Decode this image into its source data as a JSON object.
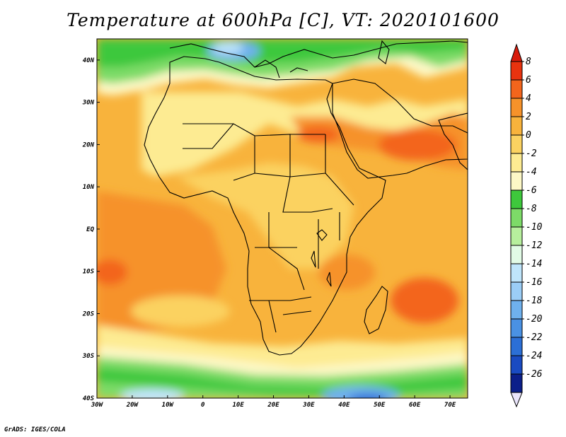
{
  "title": "Temperature at 600hPa [C], VT: 2020101600",
  "footer": "GrADS: IGES/COLA",
  "map": {
    "lon_range": [
      -30,
      75
    ],
    "lat_range": [
      -40,
      45
    ],
    "lon_ticks": [
      "30W",
      "20W",
      "10W",
      "0",
      "10E",
      "20E",
      "30E",
      "40E",
      "50E",
      "60E",
      "70E"
    ],
    "lat_ticks": [
      "40N",
      "30N",
      "20N",
      "10N",
      "EQ",
      "10S",
      "20S",
      "30S",
      "40S"
    ]
  },
  "colorbar": {
    "labels": [
      "8",
      "6",
      "4",
      "2",
      "0",
      "-2",
      "-4",
      "-6",
      "-8",
      "-10",
      "-12",
      "-14",
      "-16",
      "-18",
      "-20",
      "-22",
      "-24",
      "-26"
    ],
    "colors": [
      "#e8330f",
      "#f3651c",
      "#f6922a",
      "#f8b33c",
      "#fbd261",
      "#fdeb92",
      "#fdf8c6",
      "#3ec83c",
      "#7ddb68",
      "#b7ef9d",
      "#e2fbe6",
      "#bfe5fb",
      "#9bcdf6",
      "#6fb1ee",
      "#4a91e3",
      "#2c6fd6",
      "#1a4bc2",
      "#0c1f8a"
    ],
    "over_color": "#d81b0b",
    "under_color": "#e9e4fb"
  }
}
